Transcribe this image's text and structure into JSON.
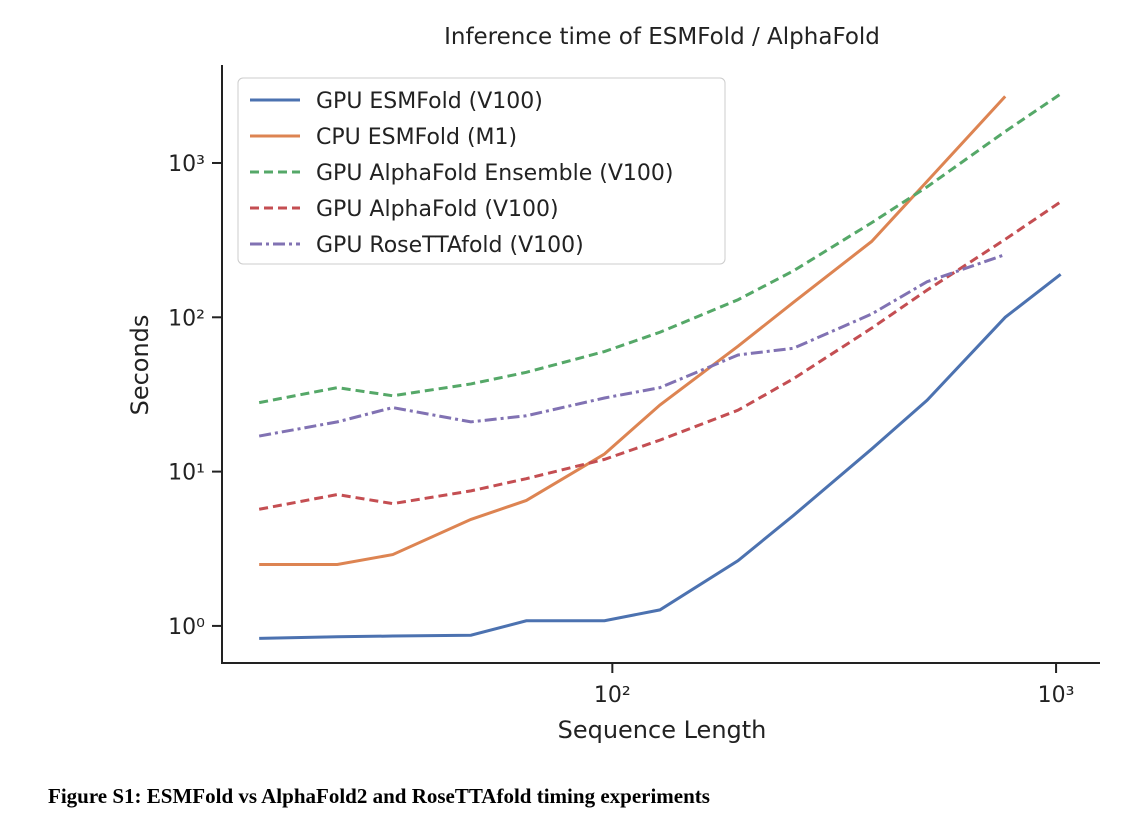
{
  "chart_data": {
    "type": "line",
    "title": "Inference time of ESMFold / AlphaFold",
    "x_label": "Sequence Length",
    "y_label": "Seconds",
    "caption": "Figure S1: ESMFold vs AlphaFold2 and RoseTTAfold timing experiments",
    "x": [
      16,
      24,
      32,
      48,
      64,
      96,
      128,
      192,
      256,
      384,
      512,
      768,
      1024
    ],
    "xscale": "log",
    "yscale": "log",
    "xlim": [
      13.4,
      1256
    ],
    "ylim": [
      0.575,
      4315
    ],
    "xticks": [
      {
        "value": 100,
        "label": "10²"
      },
      {
        "value": 1000,
        "label": "10³"
      }
    ],
    "yticks": [
      {
        "value": 1,
        "label": "10⁰"
      },
      {
        "value": 10,
        "label": "10¹"
      },
      {
        "value": 100,
        "label": "10²"
      },
      {
        "value": 1000,
        "label": "10³"
      }
    ],
    "legend": "upper left",
    "grid": false,
    "series": [
      {
        "name": "GPU ESMFold (V100)",
        "color": "#4c72b0",
        "style": "solid",
        "values": [
          0.83,
          0.85,
          0.86,
          0.87,
          1.08,
          1.08,
          1.27,
          2.65,
          5.2,
          14,
          29,
          100,
          190
        ]
      },
      {
        "name": "CPU ESMFold (M1)",
        "color": "#dd8452",
        "style": "solid",
        "values": [
          2.5,
          2.5,
          2.9,
          4.9,
          6.5,
          13,
          27,
          65,
          125,
          310,
          760,
          2700,
          null
        ]
      },
      {
        "name": "GPU AlphaFold Ensemble (V100)",
        "color": "#55a868",
        "style": "dashed",
        "values": [
          28,
          35,
          31,
          37,
          44,
          60,
          80,
          130,
          200,
          410,
          700,
          1600,
          2800
        ]
      },
      {
        "name": "GPU AlphaFold (V100)",
        "color": "#c44e52",
        "style": "dashed",
        "values": [
          5.7,
          7.1,
          6.2,
          7.5,
          9,
          12,
          16,
          25,
          40,
          85,
          150,
          320,
          560
        ]
      },
      {
        "name": "GPU RoseTTAfold (V100)",
        "color": "#8172b3",
        "style": "dashdot",
        "values": [
          17,
          21,
          26,
          21,
          23,
          30,
          35,
          57,
          63,
          105,
          170,
          255,
          null
        ]
      }
    ]
  }
}
